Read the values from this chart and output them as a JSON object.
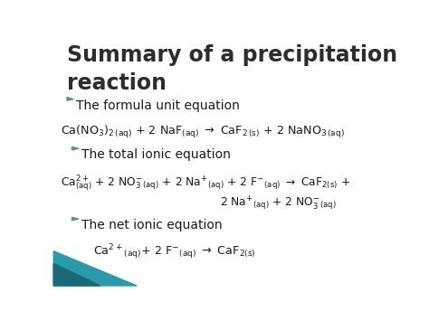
{
  "title_line1": "Summary of a precipitation",
  "title_line2": "reaction",
  "title_color": "#2d2d2d",
  "title_fontsize": 17,
  "background_color": "#ffffff",
  "bullet_color": "#5a8fa8",
  "text_color": "#1a1a1a",
  "bullet1": "The formula unit equation",
  "bullet2": "The total ionic equation",
  "bullet3": "The net ionic equation",
  "teal1": "#2a9aaa",
  "teal2": "#1a6878"
}
